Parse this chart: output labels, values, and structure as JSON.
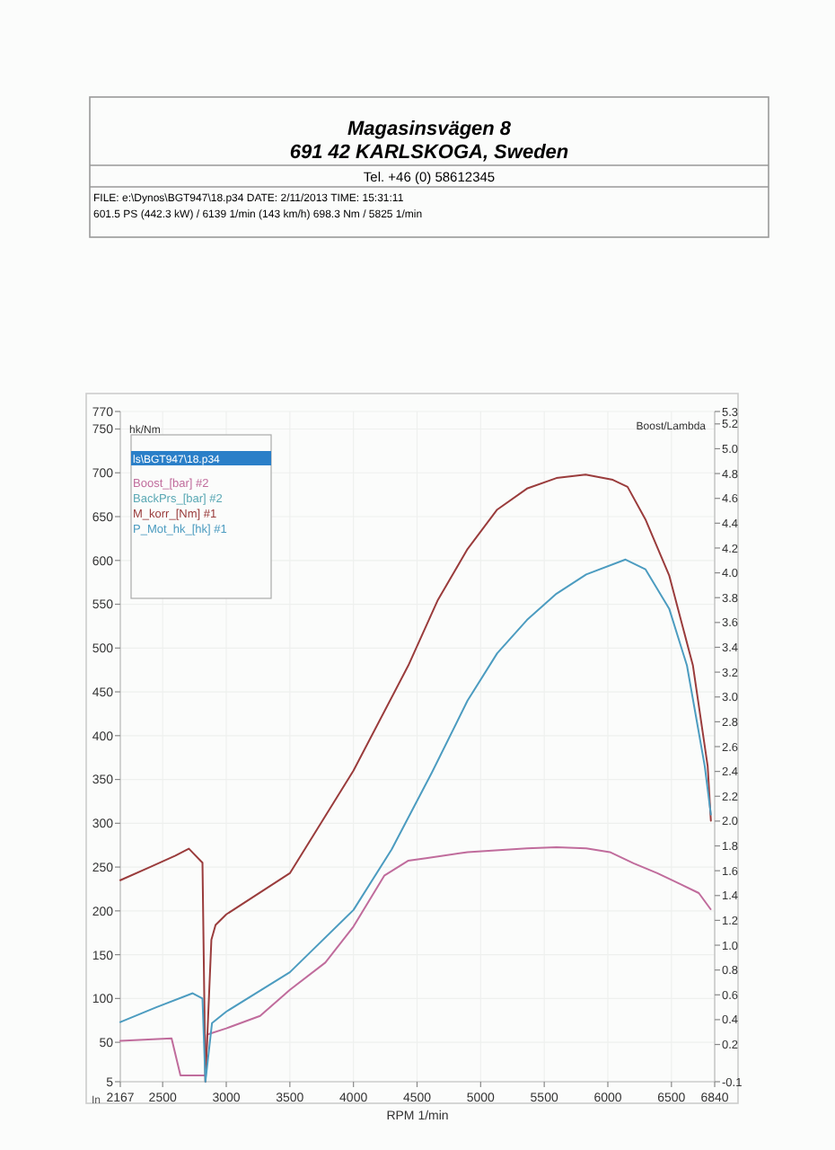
{
  "chart_data": {
    "type": "line",
    "annotations": [
      "Magasinsvägen 8",
      "691 42 KARLSKOGA, Sweden",
      "Tel. +46 (0) 58612345",
      "FILE: e:\\Dynos\\BGT947\\18.p34  DATE: 2/11/2013  TIME: 15:31:11",
      "601.5 PS  (442.3 kW) / 6139 1/min (143 km/h)    698.3 Nm / 5825 1/min",
      "In"
    ],
    "xlabel": "RPM  1/min",
    "ylabel": "hk/Nm",
    "y2label": "Boost/Lambda",
    "legend_title": "ls\\BGT947\\18.p34",
    "xlim": [
      2167,
      6840
    ],
    "xticks": [
      2167,
      2500,
      3000,
      3500,
      4000,
      4500,
      5000,
      5500,
      6000,
      6500,
      6840
    ],
    "ylim": [
      5,
      770
    ],
    "yticks": [
      5,
      50,
      100,
      150,
      200,
      250,
      300,
      350,
      400,
      450,
      500,
      550,
      600,
      650,
      700,
      750,
      770
    ],
    "y2lim": [
      -0.1,
      5.3
    ],
    "y2ticks": [
      -0.1,
      0.2,
      0.4,
      0.6,
      0.8,
      {
        "value": 1,
        "label": "1.0"
      },
      1.2,
      1.4,
      1.6,
      1.8,
      {
        "value": 2,
        "label": "2.0"
      },
      2.2,
      2.4,
      2.6,
      2.8,
      {
        "value": 3,
        "label": "3.0"
      },
      3.2,
      3.4,
      3.6,
      3.8,
      {
        "value": 4,
        "label": "4.0"
      },
      4.2,
      4.4,
      4.6,
      4.8,
      {
        "value": 5,
        "label": "5.0"
      },
      5.2,
      5.3
    ],
    "grid": true,
    "legend": "top left",
    "series": [
      {
        "name": "Boost_[bar] #2",
        "color": "#c06c9c",
        "axis": "y2",
        "x": [
          2167,
          2570,
          2640,
          2836,
          2850,
          3000,
          3266,
          3500,
          3779,
          4000,
          4242,
          4429,
          4570,
          4897,
          5364,
          5596,
          5830,
          6016,
          6202,
          6389,
          6575,
          6715,
          6808
        ],
        "values": [
          0.23,
          0.25,
          -0.05,
          -0.05,
          0.28,
          0.33,
          0.43,
          0.64,
          0.86,
          1.15,
          1.56,
          1.68,
          1.7,
          1.75,
          1.78,
          1.79,
          1.78,
          1.75,
          1.66,
          1.58,
          1.49,
          1.42,
          1.29
        ]
      },
      {
        "name": "BackPrs_[bar] #2",
        "color": "#5aa8b4",
        "axis": "y2"
      },
      {
        "name": "M_korr_[Nm] #1",
        "color": "#9a3c3c",
        "x": [
          2167,
          2400,
          2600,
          2706,
          2813,
          2836,
          2883,
          2916,
          3000,
          3500,
          4000,
          4431,
          4664,
          4897,
          5130,
          5364,
          5596,
          5825,
          6039,
          6155,
          6295,
          6482,
          6669,
          6785,
          6810
        ],
        "values": [
          235,
          250,
          263,
          271,
          255,
          5,
          167,
          184,
          196,
          243,
          360,
          480,
          555,
          613,
          658,
          682,
          694,
          698,
          692,
          684,
          647,
          583,
          480,
          365,
          303
        ]
      },
      {
        "name": "P_Mot_hk_[hk] #1",
        "color": "#4c9cc0",
        "x": [
          2167,
          2450,
          2736,
          2813,
          2836,
          2888,
          3000,
          3500,
          4000,
          4300,
          4617,
          4897,
          5130,
          5364,
          5596,
          5830,
          6139,
          6295,
          6482,
          6622,
          6762,
          6810
        ],
        "values": [
          73,
          90,
          106,
          100,
          5,
          72,
          85,
          130,
          201,
          270,
          358,
          440,
          494,
          532,
          562,
          584,
          601,
          590,
          545,
          480,
          365,
          310
        ]
      }
    ]
  }
}
